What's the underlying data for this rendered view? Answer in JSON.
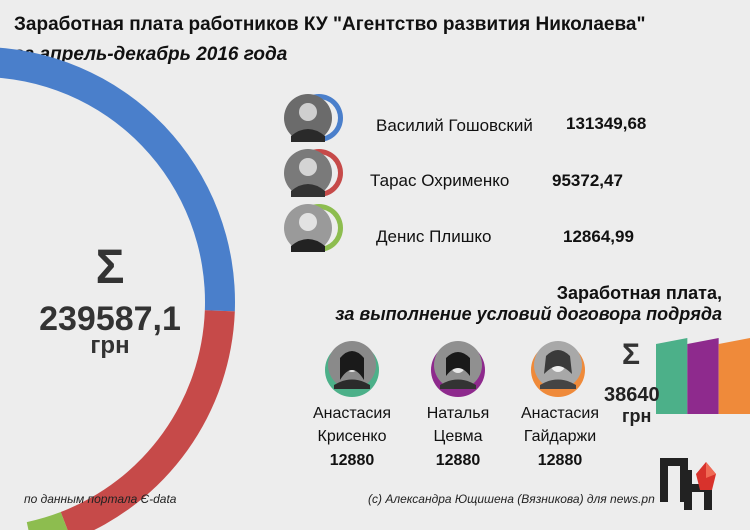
{
  "header": {
    "title": "Заработная плата работников КУ \"Агентство развития Николаева\"",
    "subtitle": "за апрель-декабрь 2016 года"
  },
  "total": {
    "symbol": "Σ",
    "value": "239587,1",
    "unit": "грн"
  },
  "employees": [
    {
      "name": "Василий Гошовский",
      "amount": "131349,68",
      "color": "#4a7fcb"
    },
    {
      "name": "Тарас Охрименко",
      "amount": "95372,47",
      "color": "#c64a49"
    },
    {
      "name": "Денис Плишко",
      "amount": "12864,99",
      "color": "#8dbd4f"
    }
  ],
  "contract": {
    "title_line1": "Заработная плата,",
    "title_line2": "за выполнение условий договора подряда",
    "symbol": "Σ",
    "value": "38640",
    "unit": "грн",
    "people": [
      {
        "name_line1": "Анастасия",
        "name_line2": "Крисенко",
        "amount": "12880",
        "color": "#4cb089"
      },
      {
        "name_line1": "Наталья",
        "name_line2": "Цевма",
        "amount": "12880",
        "color": "#8e2a8d"
      },
      {
        "name_line1": "Анастасия",
        "name_line2": "Гайдаржи",
        "amount": "12880",
        "color": "#ef8a3a"
      }
    ]
  },
  "footer": {
    "source": "по данным портала Є-data",
    "credit": "(с) Александра Ющишена (Вязникова) для news.pn"
  },
  "chart_data": [
    {
      "type": "pie",
      "title": "Заработная плата работников КУ \"Агентство развития Николаева\"",
      "subtitle": "за апрель-декабрь 2016 года",
      "categories": [
        "Василий Гошовский",
        "Тарас Охрименко",
        "Денис Плишко"
      ],
      "values": [
        131349.68,
        95372.47,
        12864.99
      ],
      "total": 239587.1,
      "colors": [
        "#4a7fcb",
        "#c64a49",
        "#8dbd4f"
      ]
    },
    {
      "type": "bar",
      "title": "Заработная плата, за выполнение условий договора подряда",
      "categories": [
        "Анастасия Крисенко",
        "Наталья Цевма",
        "Анастасия Гайдаржи"
      ],
      "values": [
        12880,
        12880,
        12880
      ],
      "total": 38640,
      "colors": [
        "#4cb089",
        "#8e2a8d",
        "#ef8a3a"
      ]
    }
  ]
}
